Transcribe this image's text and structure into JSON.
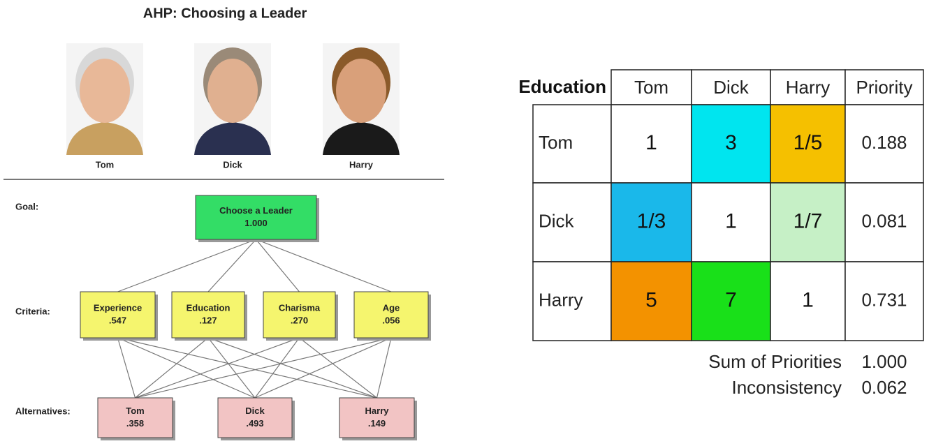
{
  "title": "AHP: Choosing a Leader",
  "candidates": [
    "Tom",
    "Dick",
    "Harry"
  ],
  "hierarchy": {
    "levels": [
      {
        "label": "Goal:",
        "nodes": [
          {
            "name": "Choose a Leader",
            "value": "1.000"
          }
        ]
      },
      {
        "label": "Criteria:",
        "nodes": [
          {
            "name": "Experience",
            "value": ".547"
          },
          {
            "name": "Education",
            "value": ".127"
          },
          {
            "name": "Charisma",
            "value": ".270"
          },
          {
            "name": "Age",
            "value": ".056"
          }
        ]
      },
      {
        "label": "Alternatives:",
        "nodes": [
          {
            "name": "Tom",
            "value": ".358"
          },
          {
            "name": "Dick",
            "value": ".493"
          },
          {
            "name": "Harry",
            "value": ".149"
          }
        ]
      }
    ]
  },
  "matrix": {
    "criterion": "Education",
    "columns": [
      "Tom",
      "Dick",
      "Harry",
      "Priority"
    ],
    "rows": [
      {
        "label": "Tom",
        "cells": [
          "1",
          "3",
          "1/5"
        ],
        "priority": "0.188"
      },
      {
        "label": "Dick",
        "cells": [
          "1/3",
          "1",
          "1/7"
        ],
        "priority": "0.081"
      },
      {
        "label": "Harry",
        "cells": [
          "5",
          "7",
          "1"
        ],
        "priority": "0.731"
      }
    ],
    "summary": [
      {
        "label": "Sum of Priorities",
        "value": "1.000"
      },
      {
        "label": "Inconsistency",
        "value": "0.062"
      }
    ]
  }
}
